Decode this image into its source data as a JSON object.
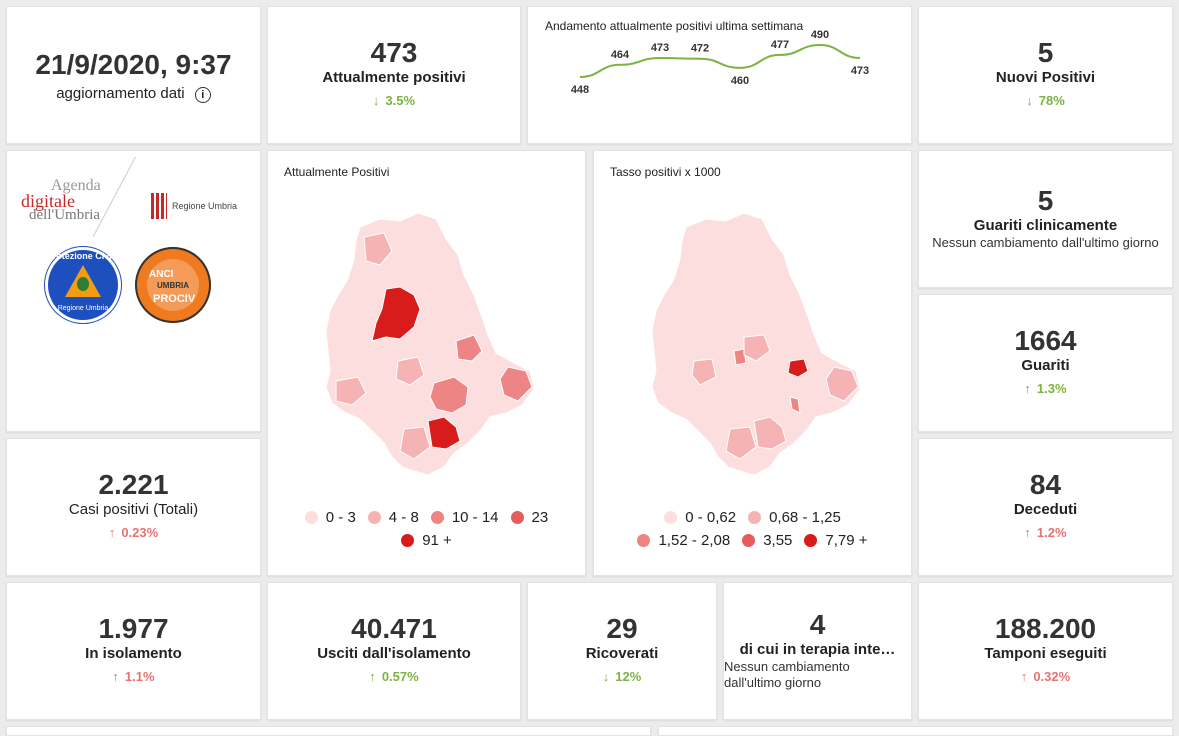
{
  "update": {
    "datetime": "21/9/2020, 9:37",
    "label": "aggiornamento dati"
  },
  "attualmente_positivi": {
    "value": "473",
    "label": "Attualmente positivi",
    "change": "3.5%",
    "direction": "down"
  },
  "trend": {
    "title": "Andamento attualmente positivi ultima settimana",
    "chart_data": {
      "type": "line",
      "values": [
        448,
        464,
        473,
        472,
        460,
        477,
        490,
        473
      ],
      "series_color": "#7cb342"
    }
  },
  "nuovi_positivi": {
    "value": "5",
    "label": "Nuovi Positivi",
    "change": "78%",
    "direction": "down"
  },
  "logos": {
    "agenda_line1": "Agenda",
    "agenda_line2": "digitale",
    "agenda_line3": "dell'Umbria",
    "regione": "Regione Umbria",
    "protezione_line1": "Protezione Civile",
    "protezione_line2": "Regione Umbria",
    "anci_line1": "ANCI",
    "anci_line2": "UMBRIA",
    "anci_line3": "PROCIV"
  },
  "map_positivi": {
    "title": "Attualmente Positivi",
    "legend": [
      {
        "label": "0 - 3",
        "color": "#fcdede"
      },
      {
        "label": "4 - 8",
        "color": "#f6b3b3"
      },
      {
        "label": "10 - 14",
        "color": "#ee8585"
      },
      {
        "label": "23",
        "color": "#e65c5c"
      },
      {
        "label": "91 +",
        "color": "#d81b1b"
      }
    ]
  },
  "map_tasso": {
    "title": "Tasso positivi x 1000",
    "legend": [
      {
        "label": "0 - 0,62",
        "color": "#fcdede"
      },
      {
        "label": "0,68 - 1,25",
        "color": "#f6b3b3"
      },
      {
        "label": "1,52 - 2,08",
        "color": "#ee8585"
      },
      {
        "label": "3,55",
        "color": "#e65c5c"
      },
      {
        "label": "7,79 +",
        "color": "#d81b1b"
      }
    ]
  },
  "guariti_clinicamente": {
    "value": "5",
    "label": "Guariti clinicamente",
    "note": "Nessun cambiamento dall'ultimo giorno"
  },
  "guariti": {
    "value": "1664",
    "label": "Guariti",
    "change": "1.3%",
    "direction": "up-green"
  },
  "casi_totali": {
    "value": "2.221",
    "label": "Casi positivi (Totali)",
    "change": "0.23%",
    "direction": "up"
  },
  "deceduti": {
    "value": "84",
    "label": "Deceduti",
    "change": "1.2%",
    "direction": "up"
  },
  "isolamento": {
    "value": "1.977",
    "label": "In isolamento",
    "change": "1.1%",
    "direction": "up"
  },
  "usciti": {
    "value": "40.471",
    "label": "Usciti dall'isolamento",
    "change": "0.57%",
    "direction": "up-green"
  },
  "ricoverati": {
    "value": "29",
    "label": "Ricoverati",
    "change": "12%",
    "direction": "down"
  },
  "terapia": {
    "value": "4",
    "label": "di cui in terapia inte…",
    "note": "Nessun cambiamento dall'ultimo giorno"
  },
  "tamponi": {
    "value": "188.200",
    "label": "Tamponi eseguiti",
    "change": "0.32%",
    "direction": "up"
  }
}
